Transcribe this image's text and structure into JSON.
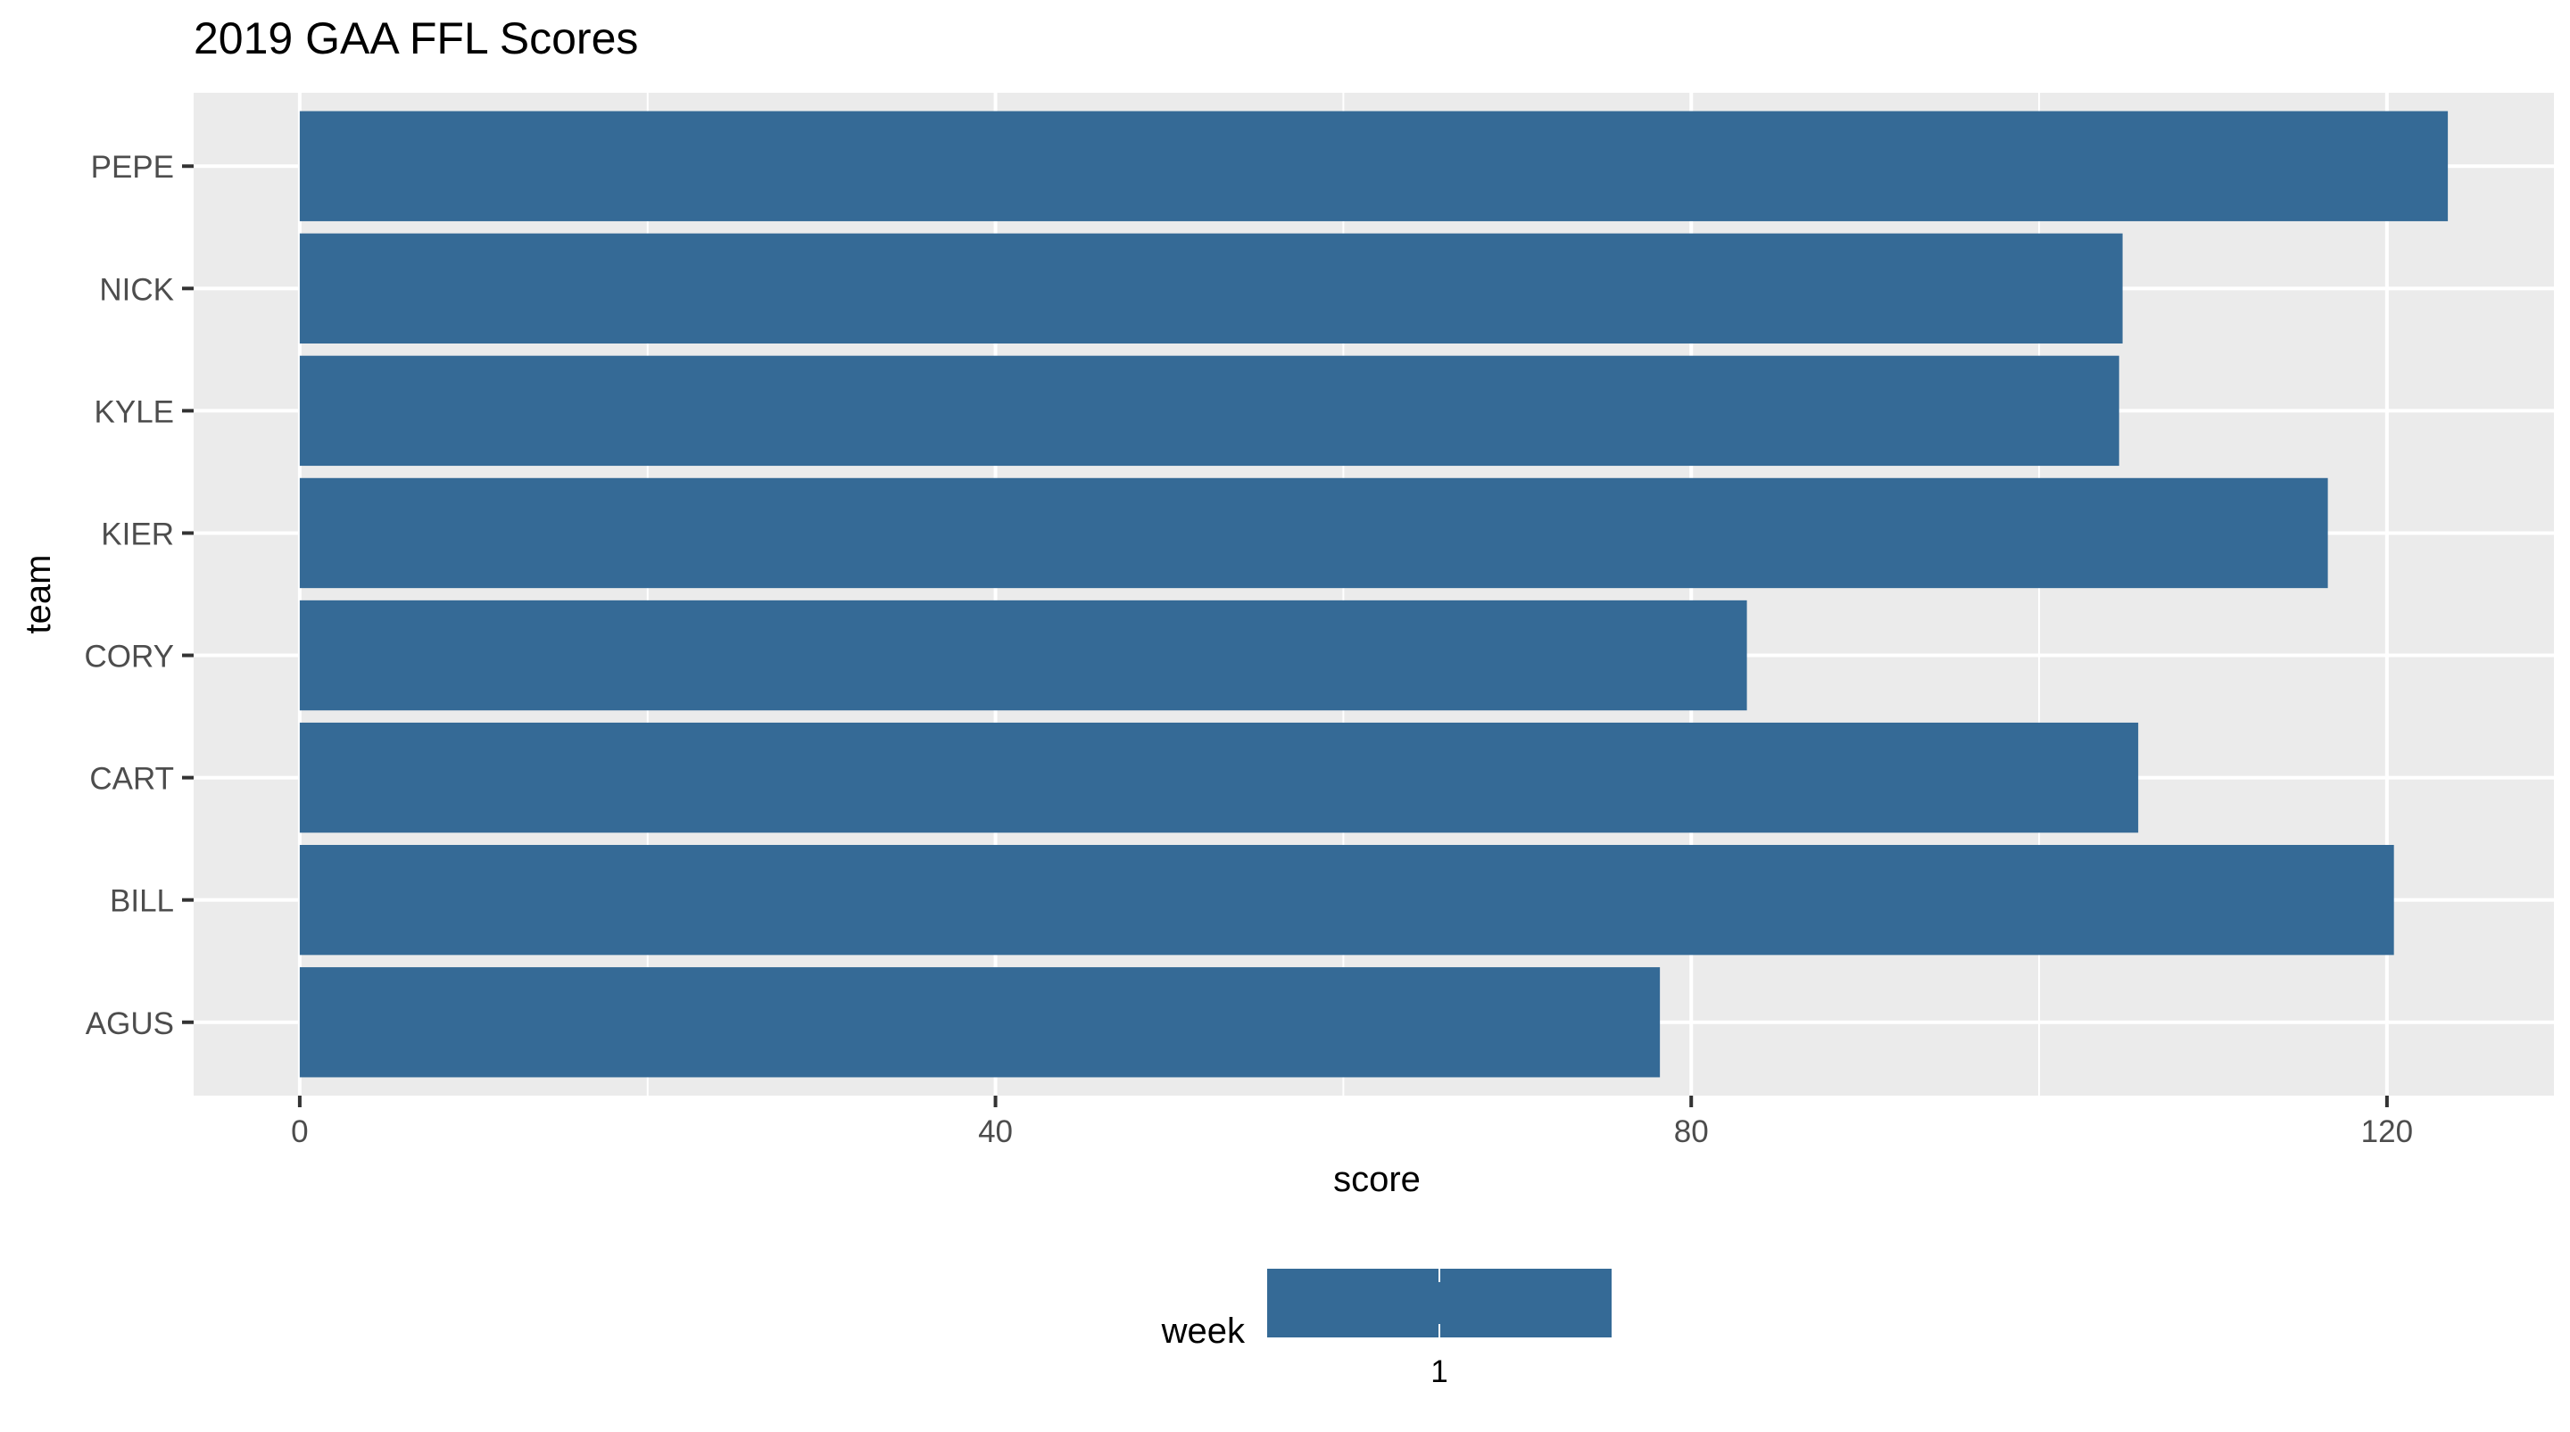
{
  "chart_data": {
    "type": "bar",
    "orientation": "horizontal",
    "title": "2019 GAA FFL Scores",
    "xlabel": "score",
    "ylabel": "team",
    "categories": [
      "AGUS",
      "BILL",
      "CART",
      "CORY",
      "KIER",
      "KYLE",
      "NICK",
      "PEPE"
    ],
    "series": [
      {
        "name": "1",
        "values": [
          78.2,
          120.4,
          105.7,
          83.2,
          116.6,
          104.6,
          104.8,
          123.5
        ]
      }
    ],
    "xlim": [
      -6.1,
      129.6
    ],
    "xticks": [
      0,
      40,
      80,
      120
    ],
    "grid": true,
    "legend": {
      "title": "week",
      "position": "bottom",
      "entries": [
        "1"
      ]
    },
    "colors": {
      "bar": "#356a96",
      "panel": "#ebebeb",
      "grid": "#ffffff"
    }
  }
}
